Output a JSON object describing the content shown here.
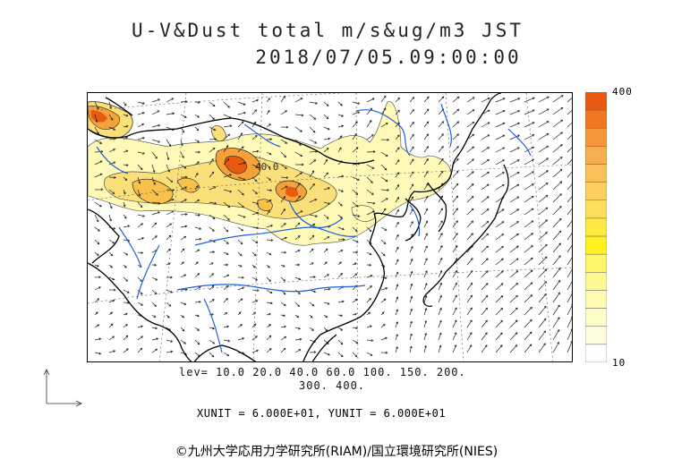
{
  "title_line1": "U-V&Dust total m/s&ug/m3 JST",
  "title_line2": "2018/07/05.09:00:00",
  "levels_line1": "lev= 10.0 20.0 40.0 60.0 100. 150. 200.",
  "levels_line2": "300. 400.",
  "units_line": "XUNIT = 6.000E+01, YUNIT = 6.000E+01",
  "credit": "©九州大学応用力学研究所(RIAM)/国立環境研究所(NIES)",
  "contour_label": "40.0",
  "colorbar": {
    "max_label": "400",
    "min_label": "10",
    "colors": [
      "#e85a10",
      "#f07820",
      "#f5963a",
      "#f7ae4e",
      "#f9c05a",
      "#fbd060",
      "#fdde5a",
      "#ffe840",
      "#fff020",
      "#fff66a",
      "#fff890",
      "#fffab0",
      "#fffcc8",
      "#fffde0",
      "#ffffff"
    ]
  },
  "colors": {
    "land_border": "#000000",
    "rivers": "#1f5fe0",
    "grid": "#555555",
    "dust_light": "#fffab8",
    "dust_mid": "#f9d15a",
    "dust_high": "#f0902a",
    "dust_peak": "#e65010"
  }
}
